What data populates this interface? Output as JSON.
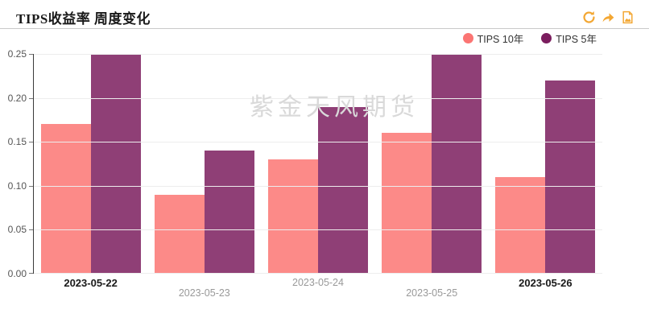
{
  "header": {
    "title": "TIPS收益率 周度变化",
    "toolbox_icons": [
      "refresh-icon",
      "share-icon",
      "save-image-icon"
    ],
    "toolbox_color": "#f3a733"
  },
  "watermark": "紫金天风期货",
  "colors": {
    "axis": "#3a3a3a",
    "grid": "#ededed",
    "x_label": "#999999",
    "x_label_emphasis": "#1a1a1a",
    "y_label": "#555555",
    "watermark": "#d9d9d9"
  },
  "chart_data": {
    "type": "bar",
    "title": "TIPS收益率 周度变化",
    "categories": [
      "2023-05-22",
      "2023-05-23",
      "2023-05-24",
      "2023-05-25",
      "2023-05-26"
    ],
    "series": [
      {
        "name": "TIPS 10年",
        "color": "#fb7573",
        "values": [
          0.17,
          0.09,
          0.13,
          0.16,
          0.11
        ]
      },
      {
        "name": "TIPS 5年",
        "color": "#7b1d5e",
        "values": [
          0.25,
          0.14,
          0.19,
          0.25,
          0.22
        ]
      }
    ],
    "bar_opacity": 0.85,
    "xlabel": "",
    "ylabel": "",
    "ylim": [
      0,
      0.25
    ],
    "ytick_step": 0.05,
    "ytick_labels": [
      "0.00",
      "0.05",
      "0.10",
      "0.15",
      "0.20",
      "0.25"
    ],
    "grid": true,
    "legend_position": "top-right",
    "emphasized_categories": [
      "2023-05-22",
      "2023-05-26"
    ]
  }
}
